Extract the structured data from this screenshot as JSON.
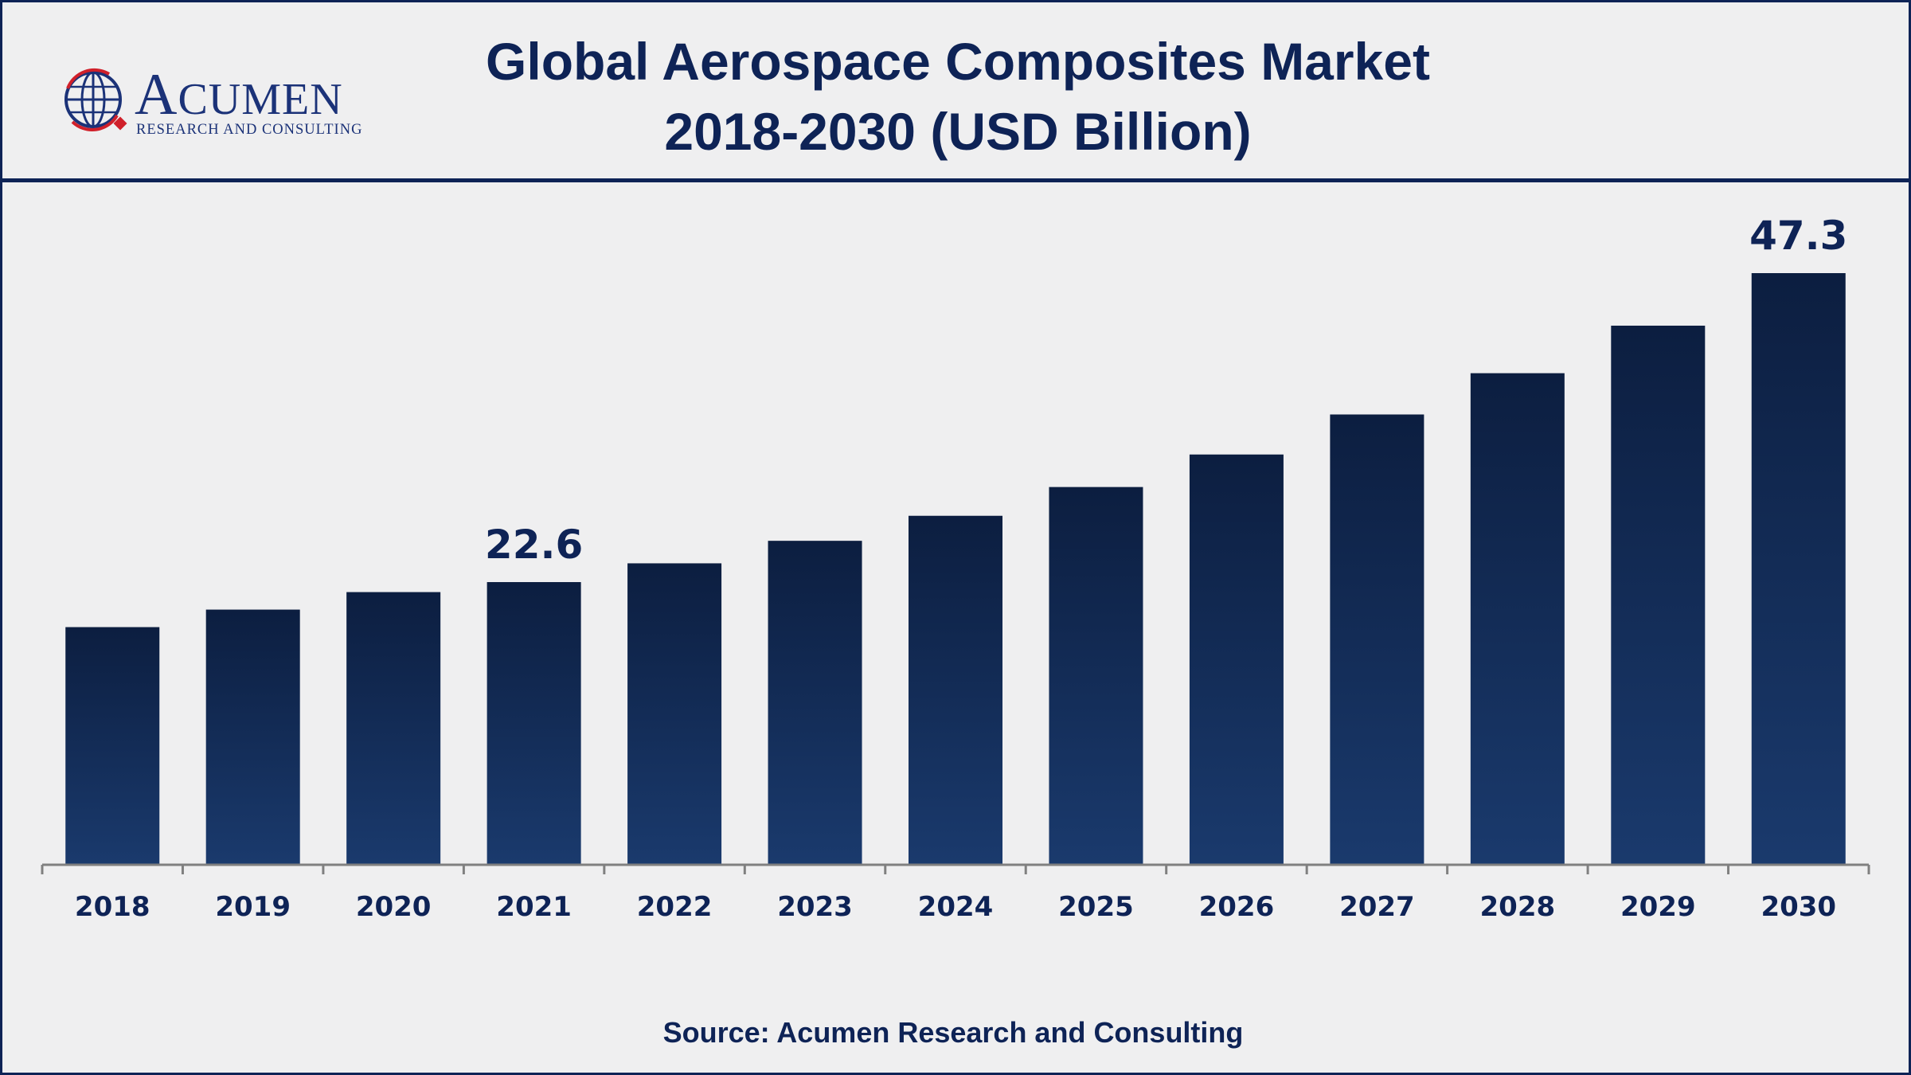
{
  "header": {
    "title_line1": "Global Aerospace Composites Market",
    "title_line2": "2018-2030 (USD Billion)"
  },
  "logo": {
    "name_first": "A",
    "name_rest": "CUMEN",
    "subtitle": "RESEARCH AND CONSULTING",
    "globe_icon": "globe-icon"
  },
  "source": "Source: Acumen Research and Consulting",
  "colors": {
    "bar_top": "#0c1e40",
    "bar_bottom": "#1a3a6d",
    "text": "#0e2356",
    "axis": "#808080"
  },
  "chart_data": {
    "type": "bar",
    "categories": [
      "2018",
      "2019",
      "2020",
      "2021",
      "2022",
      "2023",
      "2024",
      "2025",
      "2026",
      "2027",
      "2028",
      "2029",
      "2030"
    ],
    "values": [
      19.0,
      20.4,
      21.8,
      22.6,
      24.1,
      25.9,
      27.9,
      30.2,
      32.8,
      36.0,
      39.3,
      43.1,
      47.3
    ],
    "data_labels": [
      {
        "index": 3,
        "text": "22.6"
      },
      {
        "index": 12,
        "text": "47.3"
      }
    ],
    "title": "Global Aerospace Composites Market 2018-2030 (USD Billion)",
    "xlabel": "",
    "ylabel": "",
    "ylim": [
      0,
      50
    ],
    "grid": false,
    "legend": "none"
  }
}
